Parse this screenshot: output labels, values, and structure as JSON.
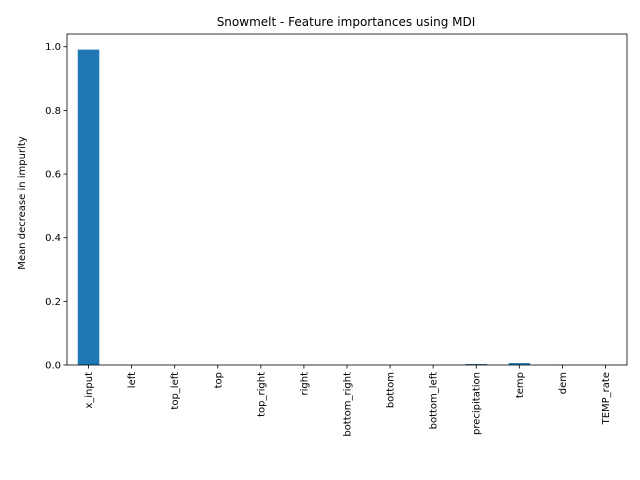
{
  "chart_data": {
    "type": "bar",
    "title": "Snowmelt - Feature importances using MDI",
    "xlabel": "",
    "ylabel": "Mean decrease in impurity",
    "categories": [
      "x_input",
      "left",
      "top_left",
      "top",
      "top_right",
      "right",
      "bottom_right",
      "bottom",
      "bottom_left",
      "precipitation",
      "temp",
      "dem",
      "TEMP_rate"
    ],
    "values": [
      0.991,
      0.0003,
      0.0003,
      0.0003,
      0.0003,
      0.0003,
      0.0003,
      0.0003,
      0.0003,
      0.003,
      0.006,
      0.0005,
      0.0003
    ],
    "ylim": [
      0,
      1.04
    ],
    "yticks": [
      0.0,
      0.2,
      0.4,
      0.6,
      0.8,
      1.0
    ],
    "ytick_labels": [
      "0.0",
      "0.2",
      "0.4",
      "0.6",
      "0.8",
      "1.0"
    ],
    "grid": false,
    "bar_color": "#1f77b4"
  }
}
